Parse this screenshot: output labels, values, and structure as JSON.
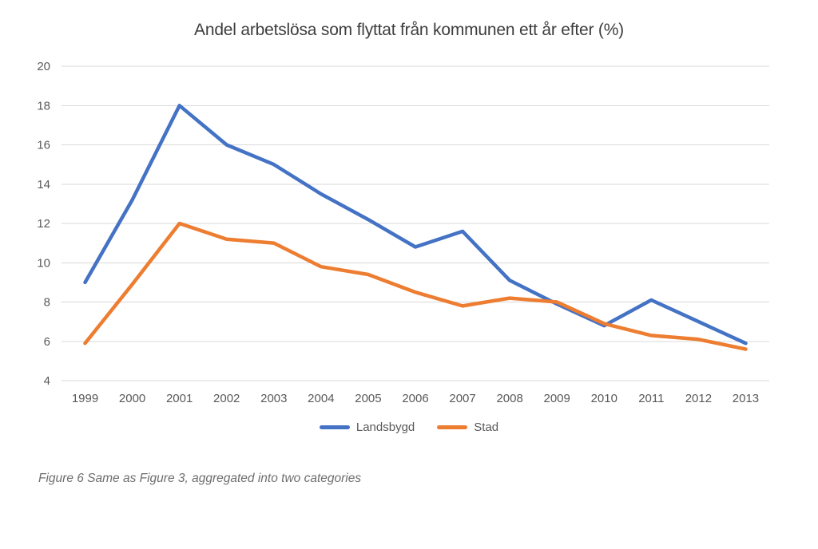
{
  "title": "Andel arbetslösa som flyttat från kommunen ett år efter (%)",
  "caption": "Figure 6 Same as Figure 3, aggregated into two categories",
  "colors": {
    "landsbygd_line": "#4472C4",
    "stad_line": "#ED7D31",
    "gridline": "#D9D9D9",
    "axis_text": "#595959",
    "title_text": "#3d3d3d",
    "caption_text": "#6e6e6e"
  },
  "chart_data": {
    "type": "line",
    "title": "Andel arbetslösa som flyttat från kommunen ett år efter (%)",
    "categories": [
      "1999",
      "2000",
      "2001",
      "2002",
      "2003",
      "2004",
      "2005",
      "2006",
      "2007",
      "2008",
      "2009",
      "2010",
      "2011",
      "2012",
      "2013"
    ],
    "series": [
      {
        "name": "Landsbygd",
        "color": "#4472C4",
        "values": [
          9.0,
          13.2,
          18.0,
          16.0,
          15.0,
          13.5,
          12.2,
          10.8,
          11.6,
          9.1,
          7.9,
          6.8,
          8.1,
          7.0,
          5.9
        ]
      },
      {
        "name": "Stad",
        "color": "#ED7D31",
        "values": [
          5.9,
          8.9,
          12.0,
          11.2,
          11.0,
          9.8,
          9.4,
          8.5,
          7.8,
          8.2,
          8.0,
          6.9,
          6.3,
          6.1,
          5.6
        ]
      }
    ],
    "xlabel": "",
    "ylabel": "",
    "ylim": [
      4,
      20
    ],
    "yticks": [
      20,
      18,
      16,
      14,
      12,
      10,
      8,
      6,
      4
    ],
    "grid": "horizontal",
    "legend_position": "bottom"
  },
  "legend": {
    "items": [
      {
        "label": "Landsbygd",
        "color": "#4472C4"
      },
      {
        "label": "Stad",
        "color": "#ED7D31"
      }
    ]
  }
}
